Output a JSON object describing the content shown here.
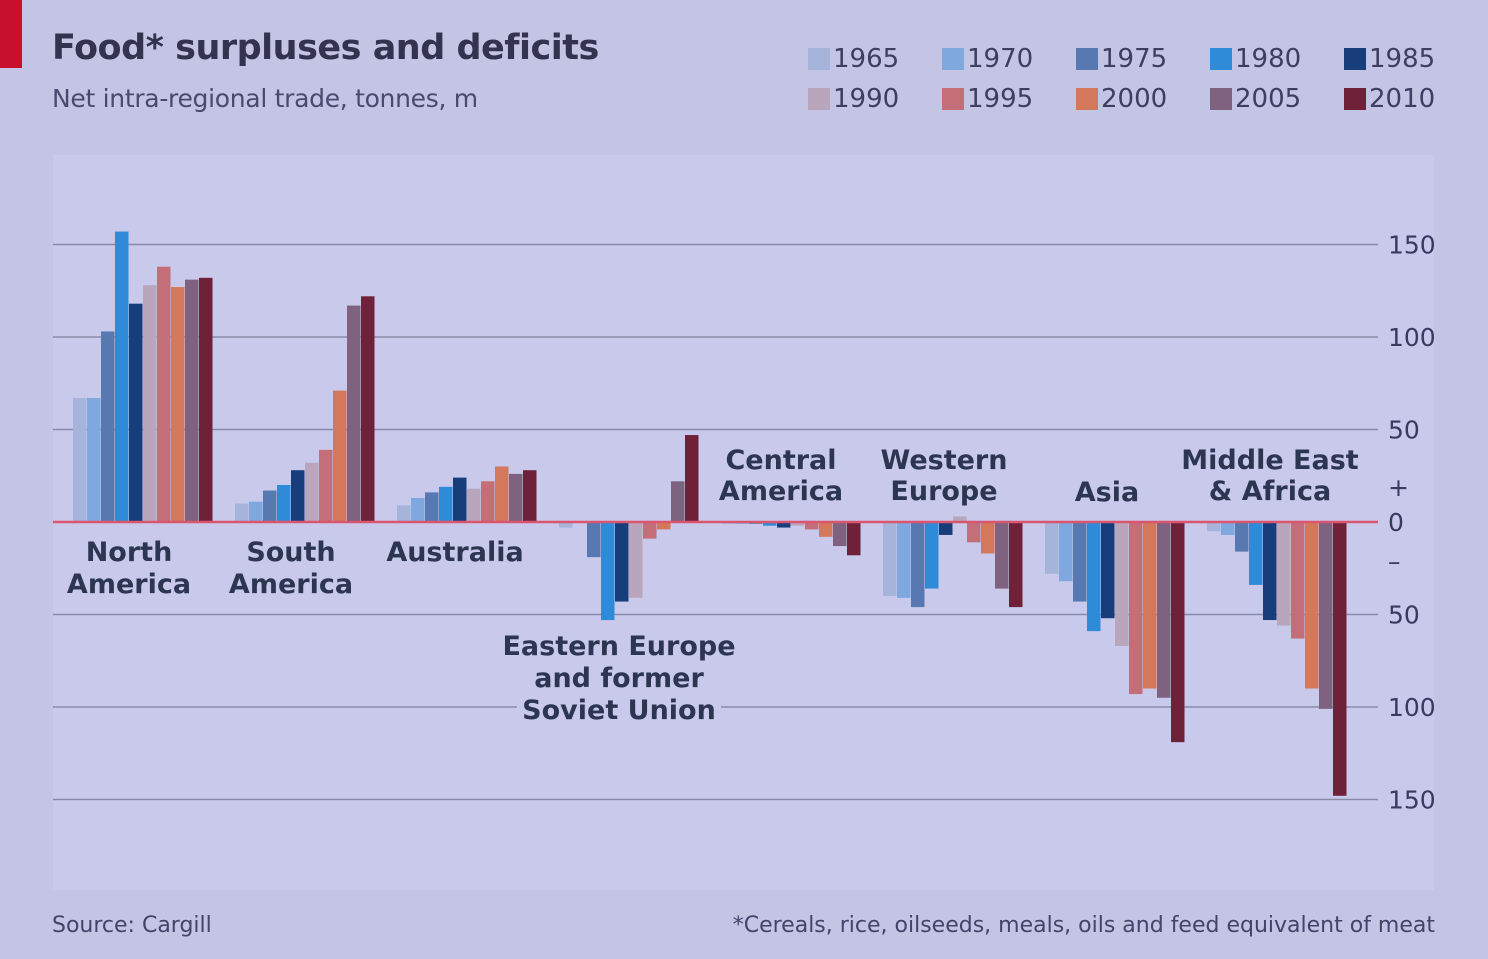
{
  "header": {
    "title": "Food* surpluses and deficits",
    "subtitle": "Net intra-regional trade, tonnes, m"
  },
  "footer": {
    "source": "Source: Cargill",
    "note": "*Cereals, rice, oilseeds, meals, oils and feed equivalent of meat"
  },
  "colors": {
    "background": "#c4c4e4",
    "plot_background": "#c9c9ec",
    "accent_red": "#c8102e",
    "zero_line": "#d9566e",
    "grid": "#8a8aa8"
  },
  "chart_data": {
    "type": "bar",
    "title": "Food* surpluses and deficits",
    "subtitle": "Net intra-regional trade, tonnes, m",
    "ylim": [
      -150,
      150
    ],
    "y_ticks": [
      150,
      100,
      50,
      0,
      -50,
      -100,
      -150
    ],
    "y_tick_labels": [
      "150",
      "100",
      "50",
      "0",
      "50",
      "100",
      "150"
    ],
    "y_sign_labels": [
      "+",
      "–"
    ],
    "grid": true,
    "legend_position": "top-right",
    "categories": [
      "North America",
      "South America",
      "Australia",
      "Eastern Europe and former Soviet Union",
      "Central America",
      "Western Europe",
      "Asia",
      "Middle East & Africa"
    ],
    "category_labels": [
      [
        "North",
        "America"
      ],
      [
        "South",
        "America"
      ],
      [
        "Australia"
      ],
      [
        "Eastern Europe",
        "and former",
        "Soviet Union"
      ],
      [
        "Central",
        "America"
      ],
      [
        "Western",
        "Europe"
      ],
      [
        "Asia"
      ],
      [
        "Middle East",
        "& Africa"
      ]
    ],
    "series": [
      {
        "name": "1965",
        "color": "#a6b4dc",
        "values": [
          67,
          10,
          9,
          -3,
          -1,
          -40,
          -28,
          -5
        ]
      },
      {
        "name": "1970",
        "color": "#7ea8de",
        "values": [
          67,
          11,
          13,
          0,
          -1,
          -41,
          -32,
          -7
        ]
      },
      {
        "name": "1975",
        "color": "#5878b2",
        "values": [
          103,
          17,
          16,
          -19,
          -1,
          -46,
          -43,
          -16
        ]
      },
      {
        "name": "1980",
        "color": "#2f8ad8",
        "values": [
          157,
          20,
          19,
          -53,
          -2,
          -36,
          -59,
          -34
        ]
      },
      {
        "name": "1985",
        "color": "#173e7a",
        "values": [
          118,
          28,
          24,
          -43,
          -3,
          -7,
          -52,
          -53
        ]
      },
      {
        "name": "1990",
        "color": "#b9a6bc",
        "values": [
          128,
          32,
          18,
          -41,
          -2,
          3,
          -67,
          -56
        ]
      },
      {
        "name": "1995",
        "color": "#c46e7a",
        "values": [
          138,
          39,
          22,
          -9,
          -4,
          -11,
          -93,
          -63
        ]
      },
      {
        "name": "2000",
        "color": "#d3785a",
        "values": [
          127,
          71,
          30,
          -4,
          -8,
          -17,
          -90,
          -90
        ]
      },
      {
        "name": "2005",
        "color": "#7e6280",
        "values": [
          131,
          117,
          26,
          22,
          -13,
          -36,
          -95,
          -101
        ]
      },
      {
        "name": "2010",
        "color": "#6e2138",
        "values": [
          132,
          122,
          28,
          47,
          -18,
          -46,
          -119,
          -148
        ]
      }
    ]
  }
}
